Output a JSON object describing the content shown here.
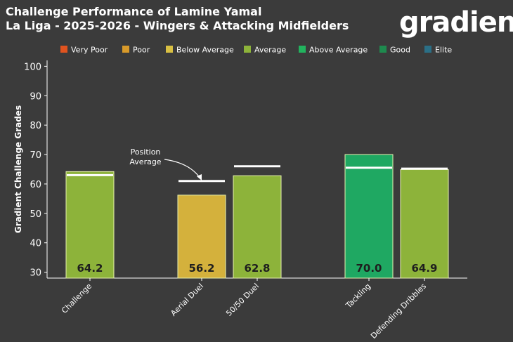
{
  "header": {
    "title_line1": "Challenge Performance of Lamine Yamal",
    "title_line2": "La Liga - 2025-2026 - Wingers & Attacking Midfielders",
    "logo_text": "gradient"
  },
  "legend": [
    {
      "label": "Very Poor",
      "color": "#e0531f"
    },
    {
      "label": "Poor",
      "color": "#d89a2a"
    },
    {
      "label": "Below Average",
      "color": "#d9c043"
    },
    {
      "label": "Average",
      "color": "#8db33a"
    },
    {
      "label": "Above Average",
      "color": "#22b35e"
    },
    {
      "label": "Good",
      "color": "#1e8a4e"
    },
    {
      "label": "Elite",
      "color": "#2b6f86"
    }
  ],
  "annotation": {
    "line1": "Position",
    "line2": "Average"
  },
  "chart_data": {
    "type": "bar",
    "title": "Challenge Performance of Lamine Yamal",
    "subtitle": "La Liga - 2025-2026 - Wingers & Attacking Midfielders",
    "xlabel": "",
    "ylabel": "Gradient Challenge Grades",
    "ylim": [
      28,
      102
    ],
    "yticks": [
      30,
      40,
      50,
      60,
      70,
      80,
      90,
      100
    ],
    "categories": [
      "Challenge",
      "Aerial Duel",
      "50/50 Duel",
      "Tackling",
      "Defending Dribbles"
    ],
    "values": [
      64.2,
      56.2,
      62.8,
      70.0,
      64.9
    ],
    "value_labels": [
      "64.2",
      "56.2",
      "62.8",
      "70.0",
      "64.9"
    ],
    "bar_categories": [
      "Average",
      "Below Average",
      "Average",
      "Above Average",
      "Average"
    ],
    "bar_colors": [
      "#8db33a",
      "#d4b13c",
      "#8db33a",
      "#1fa862",
      "#8db33a"
    ],
    "position_average": [
      63.0,
      61.0,
      66.0,
      65.5,
      65.2
    ]
  }
}
